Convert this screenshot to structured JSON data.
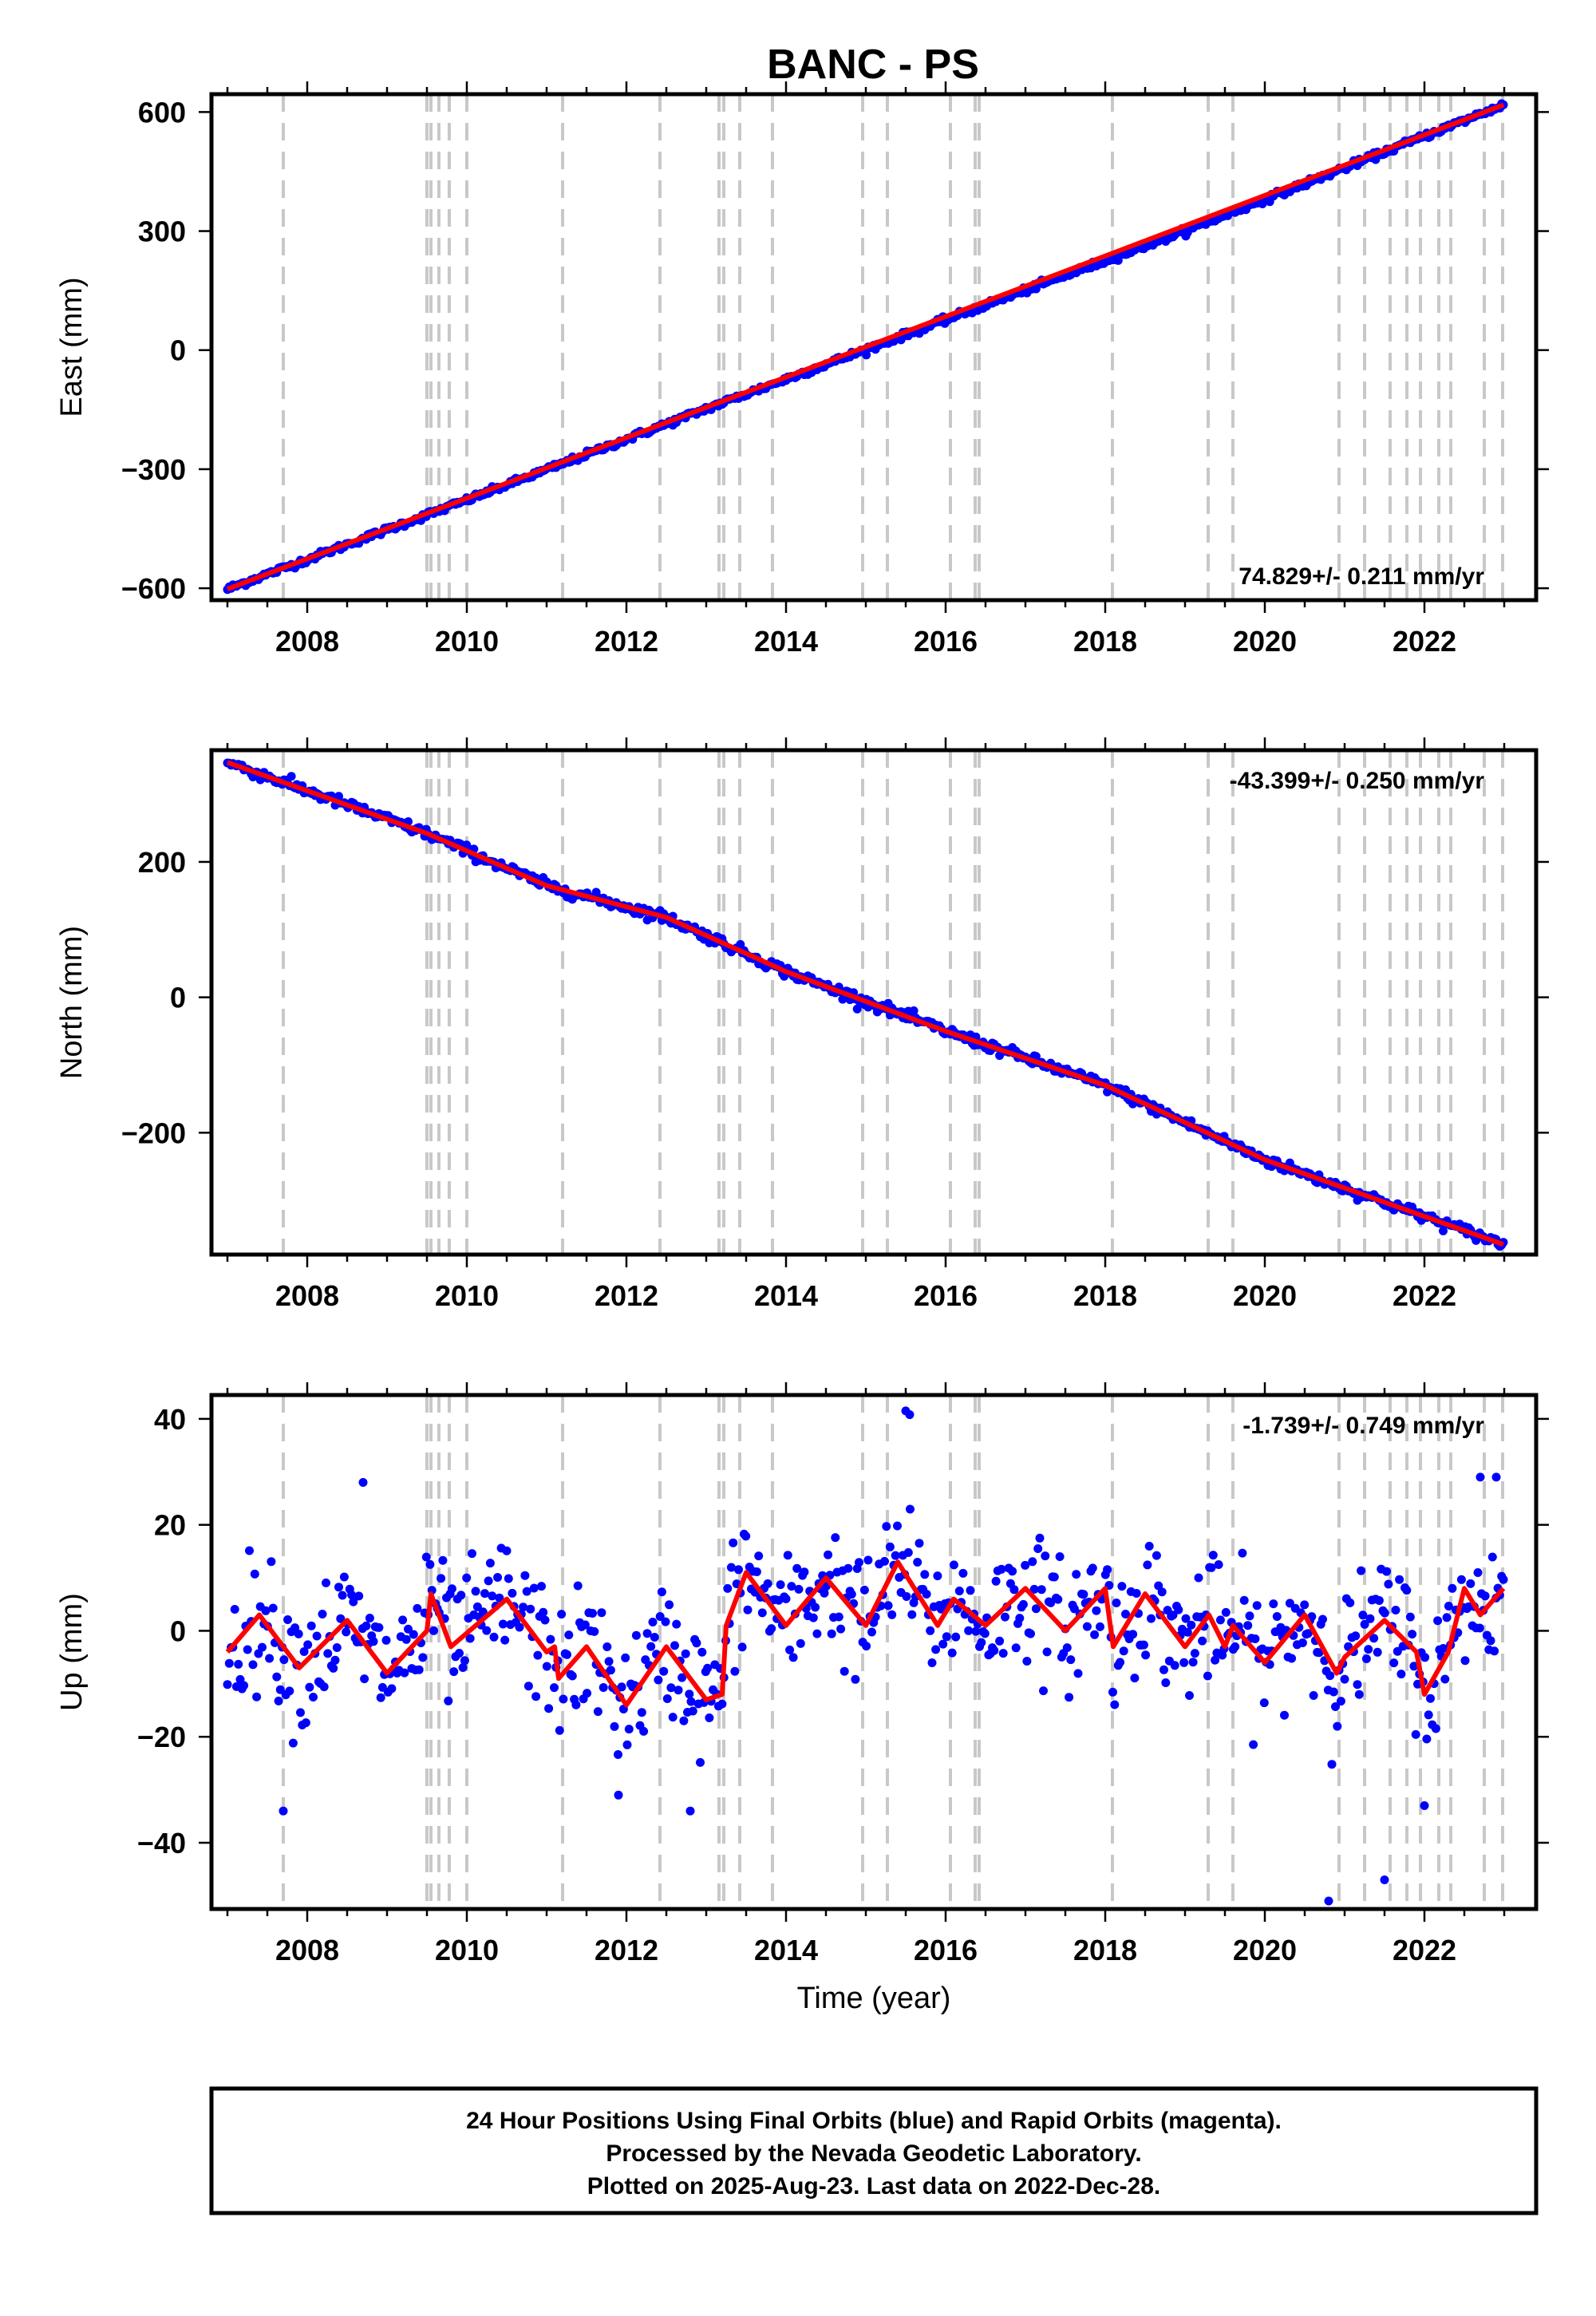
{
  "title": "BANC - PS",
  "footer": {
    "line1": "24 Hour Positions Using Final Orbits (blue) and Rapid Orbits (magenta).",
    "line2": "Processed by the Nevada Geodetic Laboratory.",
    "line3": "Plotted on 2025-Aug-23. Last data on 2022-Dec-28."
  },
  "colors": {
    "data": "#0000ff",
    "fit": "#ff0000",
    "offsets": "#c8c8c8",
    "frame": "#000000"
  },
  "chart_data": [
    {
      "type": "scatter",
      "component": "East",
      "ylabel": "East (mm)",
      "xlabel": "",
      "xlim": [
        2006.8,
        2023.4
      ],
      "ylim": [
        -630,
        645
      ],
      "xticks": [
        2008,
        2010,
        2012,
        2014,
        2016,
        2018,
        2020,
        2022
      ],
      "yticks": [
        -600,
        -300,
        0,
        300,
        600
      ],
      "ytick_labels": [
        "−600",
        "−300",
        "0",
        "300",
        "600"
      ],
      "rate_label": "74.829+/- 0.211 mm/yr",
      "rate_position": "bottom-right",
      "series": [
        {
          "style": "points",
          "x_range": [
            2007.0,
            2022.99
          ],
          "trend": [
            [
              2007.0,
              -602
            ],
            [
              2010.0,
              -378
            ],
            [
              2013.0,
              -148
            ],
            [
              2016.0,
              76
            ],
            [
              2019.0,
              300
            ],
            [
              2022.99,
              618
            ]
          ],
          "scatter_mm": 4
        },
        {
          "style": "line",
          "x": [
            2007.0,
            2022.99
          ],
          "y": [
            -602,
            618
          ]
        }
      ]
    },
    {
      "type": "scatter",
      "component": "North",
      "ylabel": "North (mm)",
      "xlabel": "",
      "xlim": [
        2006.8,
        2023.4
      ],
      "ylim": [
        -380,
        365
      ],
      "xticks": [
        2008,
        2010,
        2012,
        2014,
        2016,
        2018,
        2020,
        2022
      ],
      "yticks": [
        -200,
        0,
        200
      ],
      "ytick_labels": [
        "−200",
        "0",
        "200"
      ],
      "rate_label": "-43.399+/- 0.250 mm/yr",
      "rate_position": "top-right",
      "series": [
        {
          "style": "points",
          "x_range": [
            2007.0,
            2022.99
          ],
          "trend": [
            [
              2007.0,
              347
            ],
            [
              2009.5,
              242
            ],
            [
              2011.0,
              165
            ],
            [
              2012.5,
              118
            ],
            [
              2014.0,
              38
            ],
            [
              2016.0,
              -50
            ],
            [
              2018.0,
              -130
            ],
            [
              2020.0,
              -240
            ],
            [
              2022.99,
              -365
            ]
          ],
          "scatter_mm": 4
        },
        {
          "style": "line",
          "x": [
            2007.0,
            2009.5,
            2011.0,
            2012.5,
            2014.0,
            2016.0,
            2018.0,
            2020.0,
            2022.99
          ],
          "y": [
            347,
            242,
            165,
            118,
            38,
            -50,
            -130,
            -240,
            -365
          ]
        }
      ]
    },
    {
      "type": "scatter",
      "component": "Up",
      "ylabel": "Up (mm)",
      "xlabel": "Time (year)",
      "xlim": [
        2006.8,
        2023.4
      ],
      "ylim": [
        -52.5,
        44.5
      ],
      "xticks": [
        2008,
        2010,
        2012,
        2014,
        2016,
        2018,
        2020,
        2022
      ],
      "yticks": [
        -40,
        -20,
        0,
        20,
        40
      ],
      "ytick_labels": [
        "−40",
        "−20",
        "0",
        "20",
        "40"
      ],
      "rate_label": "-1.739+/- 0.749 mm/yr",
      "rate_position": "top-right",
      "series": [
        {
          "style": "points",
          "x_range": [
            2007.0,
            2022.99
          ],
          "scatter_mm": 6,
          "outliers": [
            [
              2007.7,
              -34
            ],
            [
              2011.9,
              -31
            ],
            [
              2012.8,
              -34
            ],
            [
              2015.5,
              41.5
            ],
            [
              2015.55,
              40.8
            ],
            [
              2020.8,
              -51
            ],
            [
              2021.5,
              -47
            ],
            [
              2022.0,
              -33
            ],
            [
              2008.7,
              28
            ],
            [
              2022.7,
              29
            ],
            [
              2022.9,
              29
            ]
          ]
        },
        {
          "style": "line",
          "x": [
            2007.0,
            2007.4,
            2007.9,
            2008.5,
            2009.0,
            2009.5,
            2009.55,
            2009.8,
            2010.5,
            2011.0,
            2011.1,
            2011.15,
            2011.5,
            2012.0,
            2012.5,
            2013.0,
            2013.2,
            2013.25,
            2013.5,
            2014.0,
            2014.5,
            2015.0,
            2015.4,
            2015.9,
            2016.1,
            2016.5,
            2017.0,
            2017.5,
            2018.0,
            2018.1,
            2018.5,
            2019.0,
            2019.3,
            2019.5,
            2019.6,
            2020.0,
            2020.5,
            2020.9,
            2021.0,
            2021.5,
            2021.9,
            2022.0,
            2022.3,
            2022.5,
            2022.7,
            2022.99
          ],
          "y": [
            -4,
            3,
            -7,
            2,
            -8,
            0,
            7,
            -3,
            6,
            -4,
            -3,
            -9,
            -3,
            -14,
            -3,
            -13,
            -12,
            1,
            11,
            1,
            10,
            1,
            13,
            1,
            6,
            1,
            8,
            0,
            8,
            -3,
            7,
            -3,
            3,
            -3,
            1,
            -6,
            3,
            -8,
            -5,
            2,
            -4,
            -12,
            -4,
            8,
            3,
            8
          ]
        }
      ]
    }
  ],
  "offset_epochs": [
    2007.7,
    2009.5,
    2009.55,
    2009.65,
    2009.78,
    2010.0,
    2011.2,
    2012.42,
    2013.16,
    2013.22,
    2013.42,
    2013.83,
    2014.96,
    2015.27,
    2016.06,
    2016.37,
    2016.42,
    2018.09,
    2019.29,
    2019.6,
    2020.93,
    2021.25,
    2021.57,
    2021.78,
    2021.95,
    2022.18,
    2022.33,
    2022.75,
    2022.98
  ]
}
